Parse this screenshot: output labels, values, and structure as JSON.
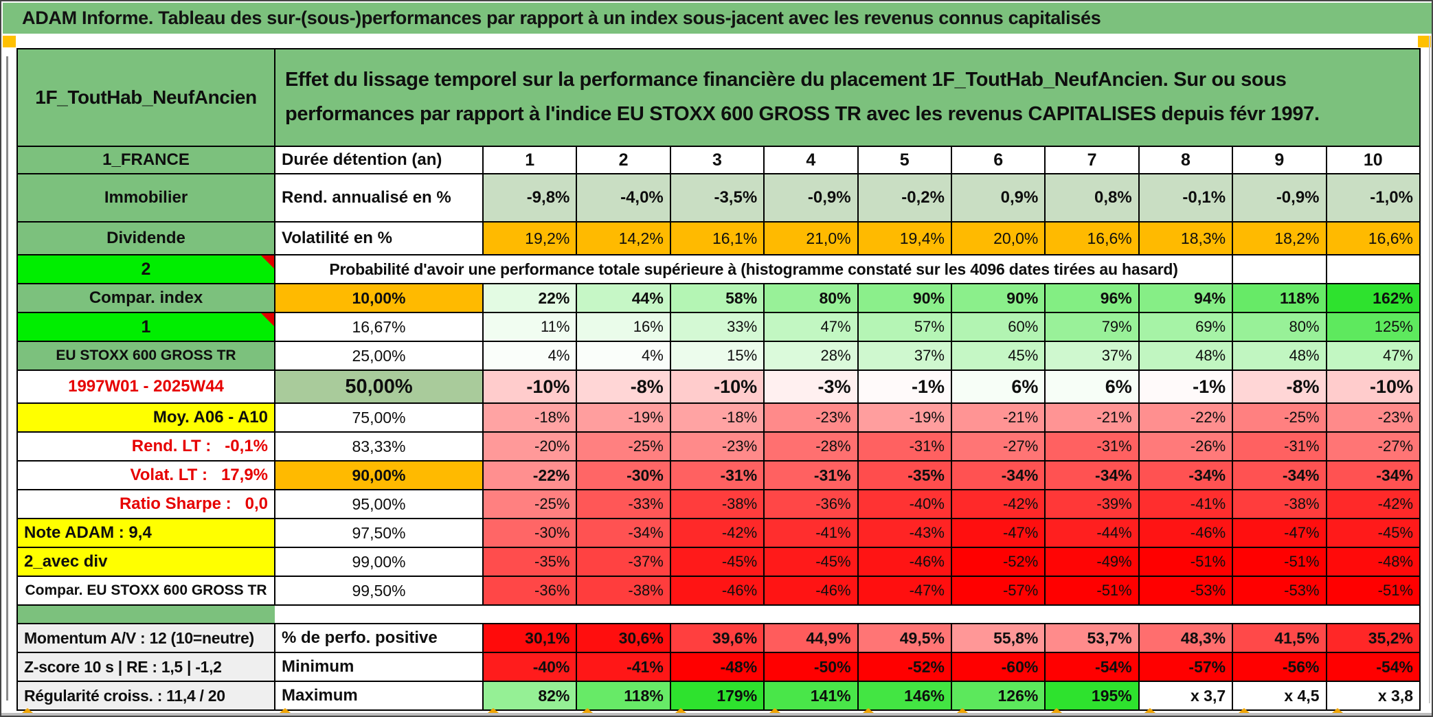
{
  "window": {
    "title_bar": "ADAM Informe. Tableau des sur-(sous-)performances par rapport à un index sous-jacent avec les revenus connus capitalisés"
  },
  "header": {
    "placement_id": "1F_ToutHab_NeufAncien",
    "description": "Effet du lissage temporel sur la performance financière du placement 1F_ToutHab_NeufAncien. Sur ou sous performances par rapport à l'indice EU STOXX 600 GROSS TR avec les revenus CAPITALISES depuis févr 1997."
  },
  "info_rows": [
    {
      "label": "1_FRANCE",
      "metric": "Durée détention (an)",
      "values": [
        "1",
        "2",
        "3",
        "4",
        "5",
        "6",
        "7",
        "8",
        "9",
        "10"
      ]
    },
    {
      "label": "Immobilier",
      "metric": "Rend. annualisé en %",
      "values": [
        "-9,8%",
        "-4,0%",
        "-3,5%",
        "-0,9%",
        "-0,2%",
        "0,9%",
        "0,8%",
        "-0,1%",
        "-0,9%",
        "-1,0%"
      ]
    },
    {
      "label": "Dividende",
      "metric": "Volatilité en %",
      "values": [
        "19,2%",
        "14,2%",
        "16,1%",
        "21,0%",
        "19,4%",
        "20,0%",
        "16,6%",
        "18,3%",
        "18,2%",
        "16,6%"
      ]
    }
  ],
  "banner": {
    "label": "2",
    "text": "Probabilité d'avoir une performance totale supérieure à (histogramme constaté sur les 4096 dates tirées au hasard)"
  },
  "matrix_rows": [
    {
      "label": "Compar. index",
      "pct": "10,00%",
      "values": [
        "22%",
        "44%",
        "58%",
        "80%",
        "90%",
        "90%",
        "96%",
        "94%",
        "118%",
        "162%"
      ]
    },
    {
      "label": "1",
      "pct": "16,67%",
      "values": [
        "11%",
        "16%",
        "33%",
        "47%",
        "57%",
        "60%",
        "79%",
        "69%",
        "80%",
        "125%"
      ]
    },
    {
      "label": "EU STOXX 600 GROSS TR",
      "pct": "25,00%",
      "values": [
        "4%",
        "4%",
        "15%",
        "28%",
        "37%",
        "45%",
        "37%",
        "48%",
        "48%",
        "47%"
      ]
    },
    {
      "label": "1997W01 - 2025W44",
      "pct": "50,00%",
      "values": [
        "-10%",
        "-8%",
        "-10%",
        "-3%",
        "-1%",
        "6%",
        "6%",
        "-1%",
        "-8%",
        "-10%"
      ]
    },
    {
      "label": "Moy. A06 - A10",
      "pct": "75,00%",
      "values": [
        "-18%",
        "-19%",
        "-18%",
        "-23%",
        "-19%",
        "-21%",
        "-21%",
        "-22%",
        "-25%",
        "-23%"
      ]
    },
    {
      "label": "Rend. LT :   -0,1%",
      "pct": "83,33%",
      "values": [
        "-20%",
        "-25%",
        "-23%",
        "-28%",
        "-31%",
        "-27%",
        "-31%",
        "-26%",
        "-31%",
        "-27%"
      ]
    },
    {
      "label": "Volat. LT :   17,9%",
      "pct": "90,00%",
      "values": [
        "-22%",
        "-30%",
        "-31%",
        "-31%",
        "-35%",
        "-34%",
        "-34%",
        "-34%",
        "-34%",
        "-34%"
      ]
    },
    {
      "label": "Ratio Sharpe :   0,0",
      "pct": "95,00%",
      "values": [
        "-25%",
        "-33%",
        "-38%",
        "-36%",
        "-40%",
        "-42%",
        "-39%",
        "-41%",
        "-38%",
        "-42%"
      ]
    },
    {
      "label": "Note ADAM : 9,4",
      "pct": "97,50%",
      "values": [
        "-30%",
        "-34%",
        "-42%",
        "-41%",
        "-43%",
        "-47%",
        "-44%",
        "-46%",
        "-47%",
        "-45%"
      ]
    },
    {
      "label": "2_avec div",
      "pct": "99,00%",
      "values": [
        "-35%",
        "-37%",
        "-45%",
        "-45%",
        "-46%",
        "-52%",
        "-49%",
        "-51%",
        "-51%",
        "-48%"
      ]
    },
    {
      "label": "Compar. EU STOXX 600 GROSS TR",
      "pct": "99,50%",
      "values": [
        "-36%",
        "-38%",
        "-46%",
        "-46%",
        "-47%",
        "-57%",
        "-51%",
        "-53%",
        "-53%",
        "-51%"
      ]
    }
  ],
  "summary_rows": [
    {
      "label": "Momentum A/V : 12 (10=neutre)",
      "metric": "% de perfo. positive",
      "values": [
        "30,1%",
        "30,6%",
        "39,6%",
        "44,9%",
        "49,5%",
        "55,8%",
        "53,7%",
        "48,3%",
        "41,5%",
        "35,2%"
      ]
    },
    {
      "label": "Z-score 10 s | RE : 1,5 | -1,2",
      "metric": "Minimum",
      "values": [
        "-40%",
        "-41%",
        "-48%",
        "-50%",
        "-52%",
        "-60%",
        "-54%",
        "-57%",
        "-56%",
        "-54%"
      ]
    },
    {
      "label": "Régularité croiss. : 11,4 / 20",
      "metric": "Maximum",
      "values": [
        "82%",
        "118%",
        "179%",
        "141%",
        "146%",
        "126%",
        "195%",
        "x 3,7",
        "x 4,5",
        "x 3,8"
      ]
    }
  ],
  "colors": {
    "header_green": "#7CC17D",
    "bright_green": "#00EE00",
    "sage": "#C9DEC3",
    "sage_mid": "#A9CB9B",
    "orange": "#FFBA00",
    "yellow": "#FFFF00",
    "label_gray": "#EFEFEF",
    "red_text": "#E60000",
    "heat_green_max": "#2EE22E",
    "heat_red_max": "#FF0000",
    "corner_square_orange": "#FFC000"
  }
}
